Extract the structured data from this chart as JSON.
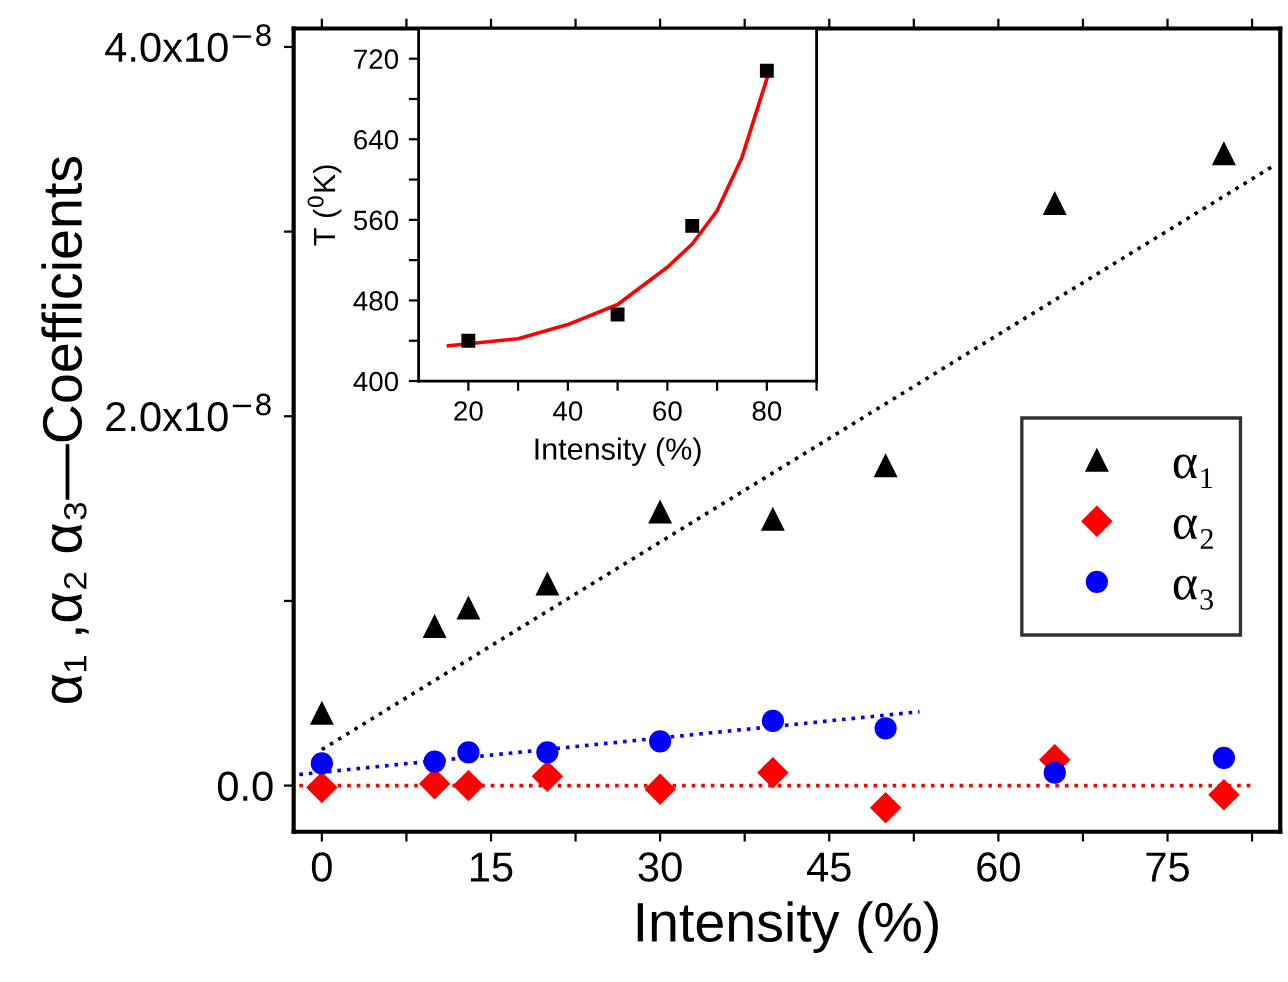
{
  "chart_data": [
    {
      "type": "scatter",
      "xlabel": "Intensity (%)",
      "ylabel": "α₁ ,α₂ α₃—Coefficients",
      "x": [
        0,
        10,
        13,
        20,
        30,
        40,
        50,
        65,
        80
      ],
      "series": [
        {
          "name": "α₁",
          "color": "#000000",
          "marker": "triangle",
          "values": [
            3.9e-09,
            8.6e-09,
            9.6e-09,
            1.09e-08,
            1.48e-08,
            1.44e-08,
            1.73e-08,
            3.15e-08,
            3.42e-08
          ]
        },
        {
          "name": "α₂",
          "color": "#ff0000",
          "marker": "diamond",
          "values": [
            -1e-10,
            1e-10,
            0,
            5e-10,
            -2e-10,
            7e-10,
            -1.2e-09,
            1.4e-09,
            -5e-10
          ]
        },
        {
          "name": "α₃",
          "color": "#0000ff",
          "marker": "circle",
          "values": [
            1.2e-09,
            1.3e-09,
            1.8e-09,
            1.8e-09,
            2.4e-09,
            3.5e-09,
            3.1e-09,
            7e-10,
            1.5e-09
          ]
        },
        {
          "type": "line",
          "color": "#000000",
          "line_style": "dotted",
          "marker": "none",
          "x": [
            0,
            84.5
          ],
          "values": [
            1.95e-09,
            3.36e-08
          ]
        },
        {
          "type": "line",
          "color": "#0000ff",
          "line_style": "dotted",
          "marker": "none",
          "x": [
            -2,
            53
          ],
          "values": [
            6e-10,
            4e-09
          ]
        },
        {
          "type": "line",
          "color": "#ff0000",
          "line_style": "dotted",
          "marker": "none",
          "x": [
            -2,
            82.5
          ],
          "values": [
            0,
            0
          ]
        }
      ],
      "xlim": [
        -2.5,
        85
      ],
      "ylim": [
        -2.5e-09,
        4.1e-08
      ],
      "xticks": [
        0,
        {
          "value": 7.5,
          "label": null
        },
        15,
        {
          "value": 22.5,
          "label": null
        },
        30,
        {
          "value": 37.5,
          "label": null
        },
        45,
        {
          "value": 52.5,
          "label": null
        },
        60,
        {
          "value": 67.5,
          "label": null
        },
        75,
        {
          "value": 82.5,
          "label": null
        }
      ],
      "yticks": [
        {
          "value": 0,
          "label": "0.0"
        },
        {
          "value": 1e-08,
          "label": null
        },
        {
          "value": 2e-08,
          "label": "2.0x10$^{−8}$"
        },
        {
          "value": 3e-08,
          "label": null
        },
        {
          "value": 4e-08,
          "label": "4.0x10$^{−8}$"
        }
      ],
      "grid": false,
      "legend": "right"
    },
    {
      "type": "scatter",
      "xlabel": "Intensity (%)",
      "ylabel": "T ($^{0}$K)",
      "series": [
        {
          "color": "#000000",
          "marker": "square",
          "x": [
            20,
            50,
            65,
            80
          ],
          "values": [
            440,
            466,
            554,
            708
          ]
        },
        {
          "type": "line",
          "color": "#ff0000",
          "line_style": "solid",
          "marker": "none",
          "x": [
            16,
            20,
            30,
            40,
            50,
            60,
            65,
            70,
            75,
            80
          ],
          "values": [
            435,
            437,
            442,
            456,
            476,
            513,
            536,
            569,
            622,
            700
          ]
        }
      ],
      "xlim": [
        10,
        90
      ],
      "ylim": [
        400,
        750
      ],
      "xticks": [
        20,
        {
          "value": 30,
          "label": null
        },
        40,
        {
          "value": 50,
          "label": null
        },
        60,
        {
          "value": 70,
          "label": null
        },
        80,
        {
          "value": 90,
          "label": null
        }
      ],
      "yticks": [
        400,
        {
          "value": 440,
          "label": null
        },
        480,
        {
          "value": 520,
          "label": null
        },
        560,
        {
          "value": 600,
          "label": null
        },
        640,
        {
          "value": 680,
          "label": null
        },
        720
      ],
      "grid": false,
      "legend": false
    }
  ]
}
